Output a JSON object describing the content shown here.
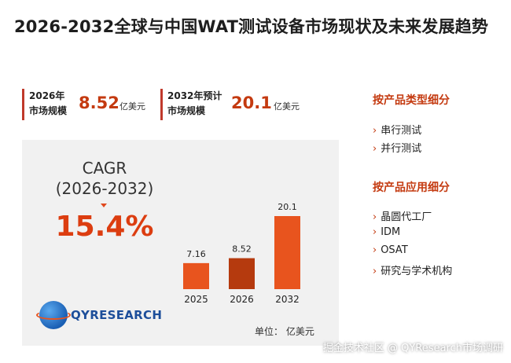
{
  "title": "2026-2032全球与中国WAT测试设备市场现状及未来发展趋势",
  "stats": [
    {
      "label_line1": "2026年",
      "label_line2": "市场规模",
      "value": "8.52",
      "unit": "亿美元"
    },
    {
      "label_line1": "2032年预计",
      "label_line2": "市场规模",
      "value": "20.1",
      "unit": "亿美元"
    }
  ],
  "cagr": {
    "label": "CAGR",
    "period": "(2026-2032)",
    "value": "15.4%"
  },
  "logo_text": "QYRESEARCH",
  "unit_note": "单位：  亿美元",
  "sidebar": {
    "section1": {
      "heading": "按产品类型细分",
      "items": [
        "串行测试",
        "并行测试"
      ]
    },
    "section2": {
      "heading": "按产品应用细分",
      "items": [
        "晶圆代工厂",
        "IDM",
        "OSAT",
        "研究与学术机构"
      ]
    }
  },
  "watermark": "掘金技术社区 @ QYResearch市场调研",
  "colors": {
    "accent": "#c43a10",
    "bar_light": "#e8541e",
    "bar_dark": "#b53a0e",
    "panel_bg": "#f1f1f1"
  },
  "icons": {
    "list_bullet": "chevron-right-icon"
  },
  "chart_data": {
    "type": "bar",
    "categories": [
      "2025",
      "2026",
      "2032"
    ],
    "values": [
      7.16,
      8.52,
      20.1
    ],
    "data_labels": [
      "7.16",
      "8.52",
      "20.1"
    ],
    "title": "",
    "xlabel": "",
    "ylabel": "",
    "unit": "亿美元",
    "ylim": [
      0,
      22
    ],
    "grid": false,
    "legend": "none"
  }
}
